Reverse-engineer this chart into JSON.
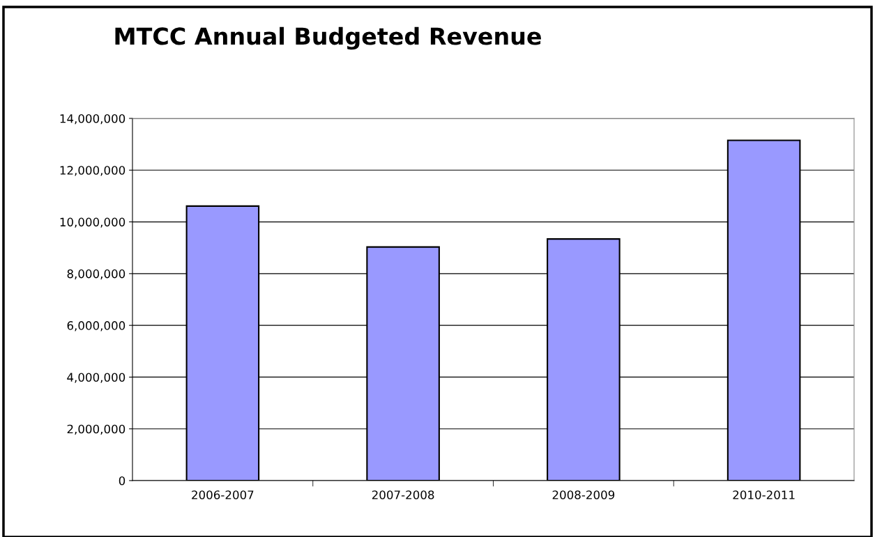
{
  "chart_data": {
    "type": "bar",
    "title": "MTCC Annual Budgeted Revenue",
    "categories": [
      "2006-2007",
      "2007-2008",
      "2008-2009",
      "2010-2011"
    ],
    "values": [
      10610000,
      9030000,
      9340000,
      13150000
    ],
    "color": "#9999ff",
    "ylim": [
      0,
      14000000
    ],
    "yticks": [
      {
        "value": 0,
        "label": "0"
      },
      {
        "value": 2000000,
        "label": "2,000,000"
      },
      {
        "value": 4000000,
        "label": "4,000,000"
      },
      {
        "value": 6000000,
        "label": "6,000,000"
      },
      {
        "value": 8000000,
        "label": "8,000,000"
      },
      {
        "value": 10000000,
        "label": "10,000,000"
      },
      {
        "value": 12000000,
        "label": "12,000,000"
      },
      {
        "value": 14000000,
        "label": "14,000,000"
      }
    ],
    "grid": "y",
    "legend": false
  }
}
